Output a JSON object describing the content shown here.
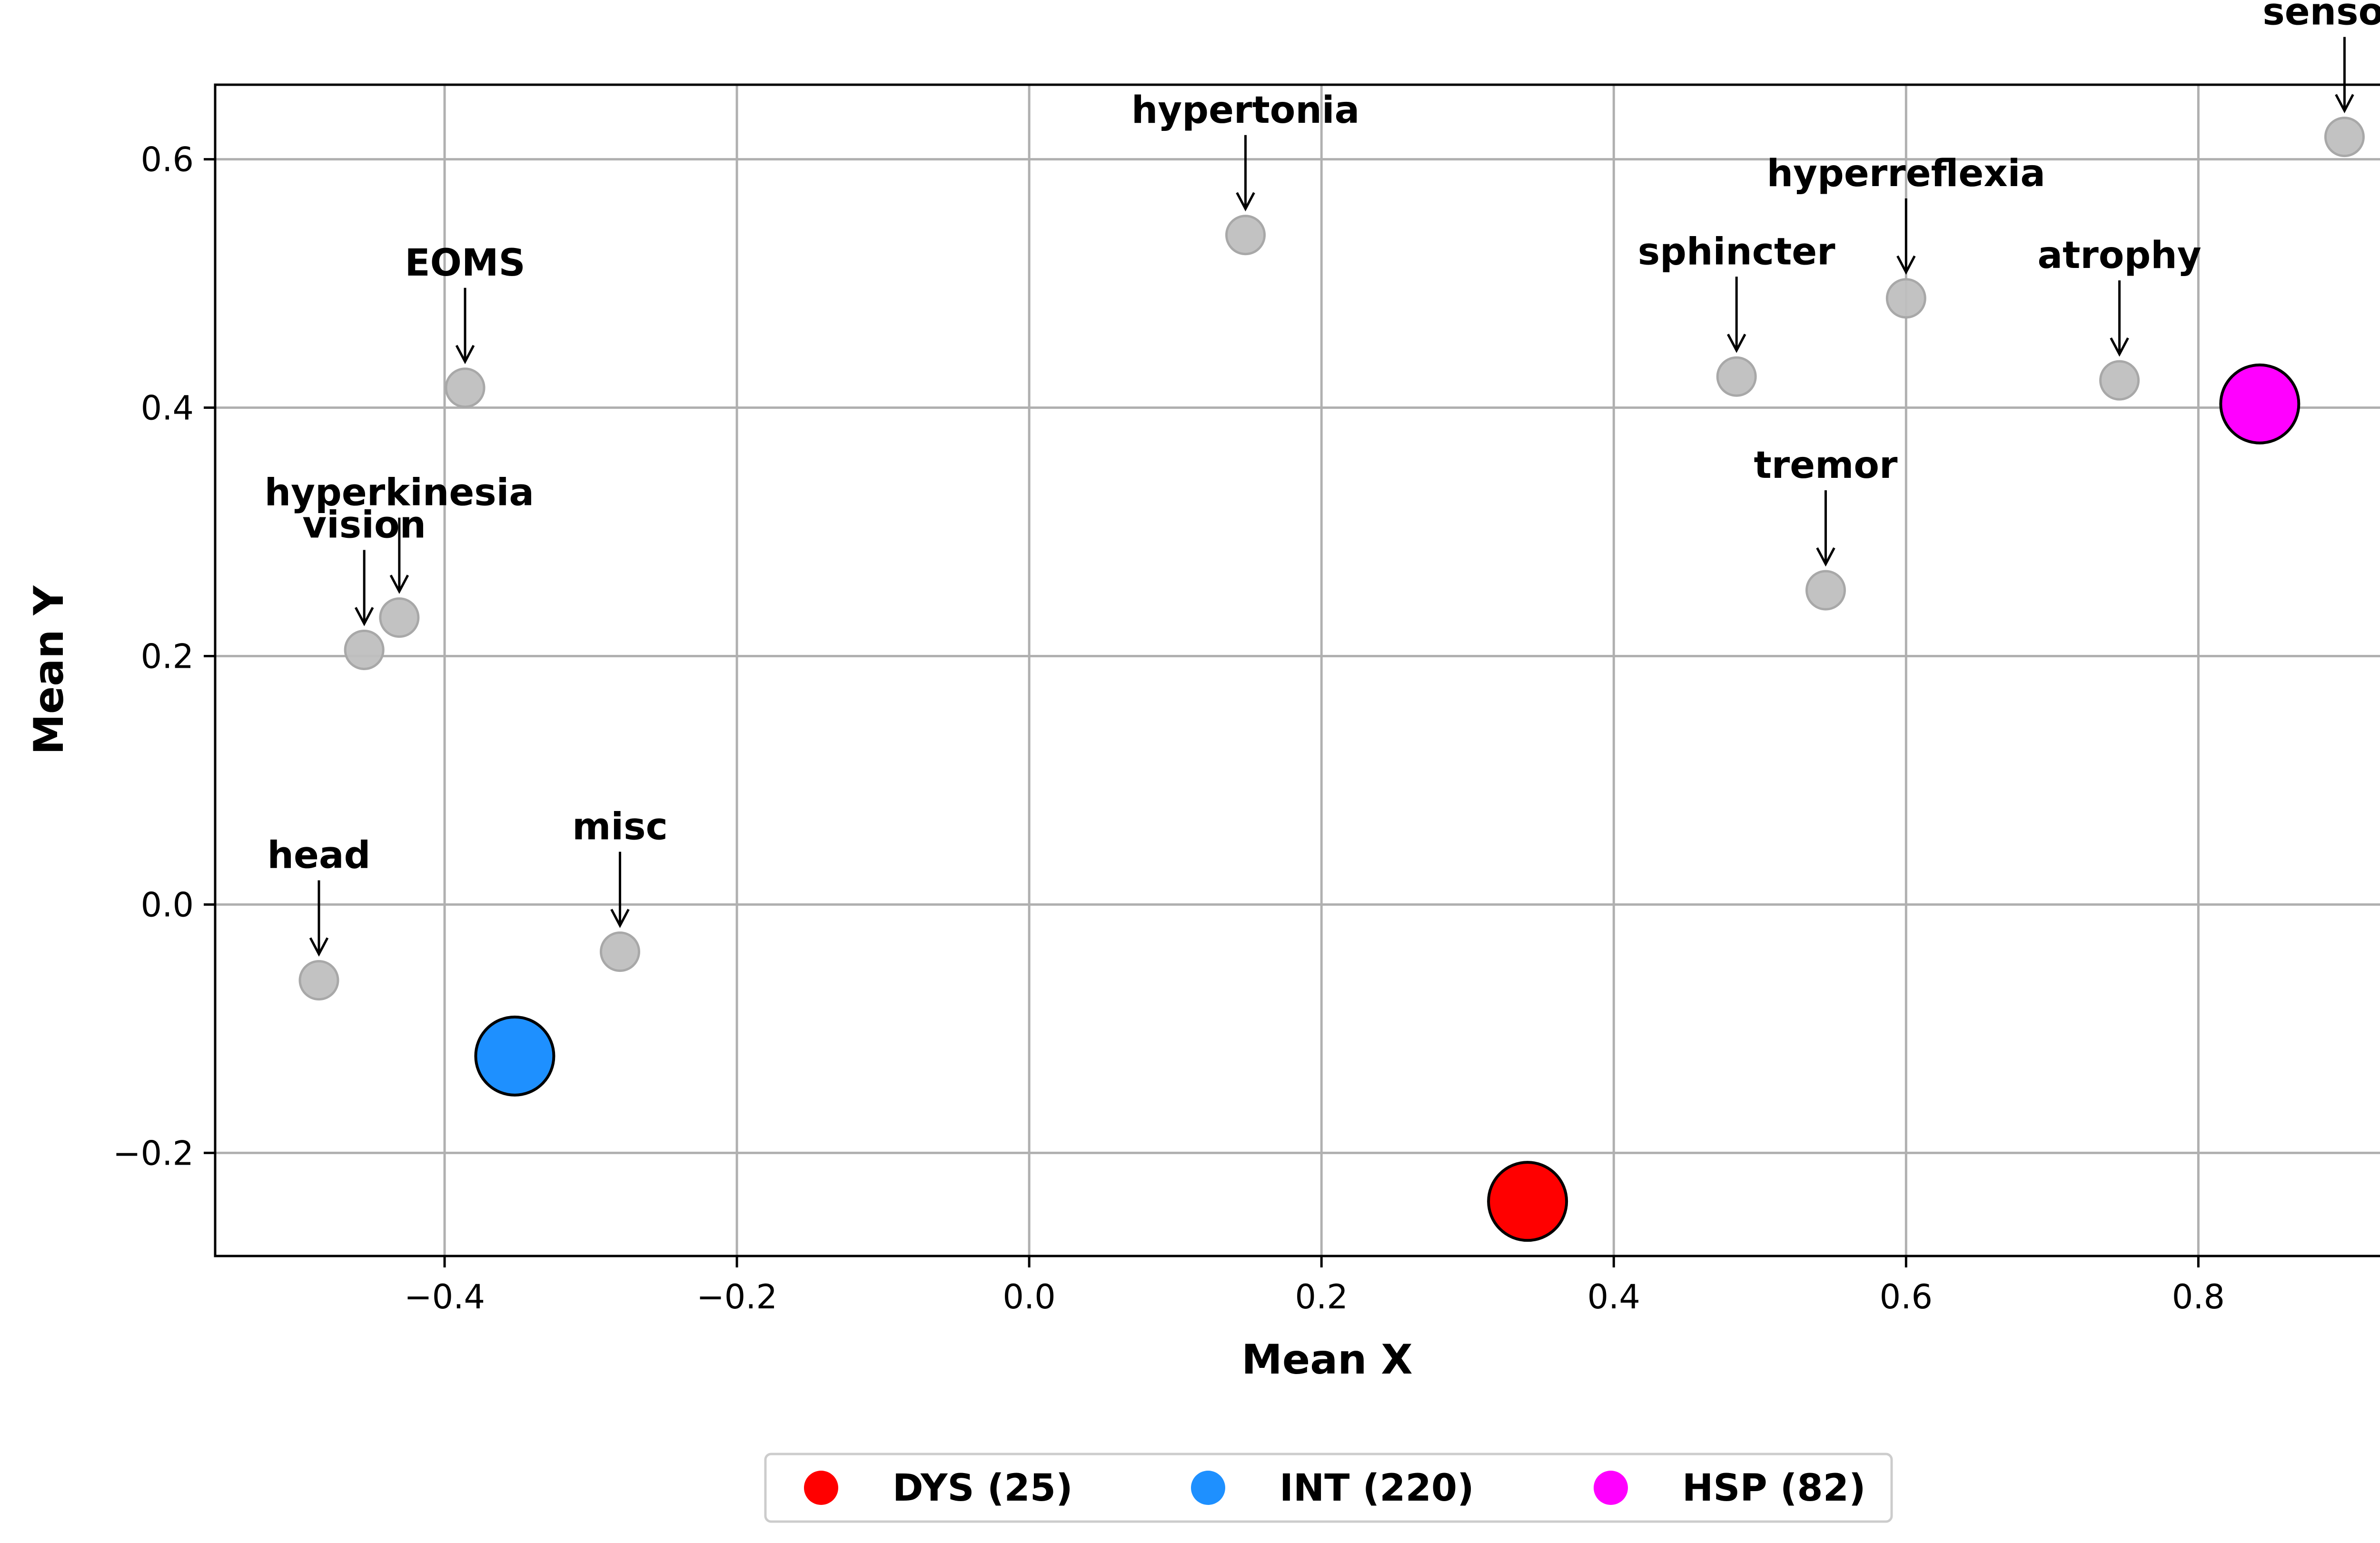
{
  "chart_data": {
    "type": "scatter",
    "xlabel": "Mean X",
    "ylabel": "Mean Y",
    "xlim": [
      -0.557,
      0.965
    ],
    "ylim": [
      -0.283,
      0.66
    ],
    "x_ticks": [
      -0.4,
      -0.2,
      0.0,
      0.2,
      0.4,
      0.6,
      0.8
    ],
    "x_tick_labels": [
      "−0.4",
      "−0.2",
      "0.0",
      "0.2",
      "0.4",
      "0.6",
      "0.8"
    ],
    "y_ticks": [
      -0.2,
      0.0,
      0.2,
      0.4,
      0.6
    ],
    "y_tick_labels": [
      "−0.2",
      "0.0",
      "0.2",
      "0.4",
      "0.6"
    ],
    "grid": true,
    "legend_position": "bottom-center, below plot",
    "features": [
      {
        "label": "sensory",
        "x": 0.9,
        "y": 0.618
      },
      {
        "label": "hypertonia",
        "x": 0.148,
        "y": 0.539
      },
      {
        "label": "hyperreflexia",
        "x": 0.6,
        "y": 0.488
      },
      {
        "label": "sphincter",
        "x": 0.484,
        "y": 0.425
      },
      {
        "label": "atrophy",
        "x": 0.746,
        "y": 0.422
      },
      {
        "label": "EOMS",
        "x": -0.386,
        "y": 0.416
      },
      {
        "label": "tremor",
        "x": 0.545,
        "y": 0.253
      },
      {
        "label": "hyperkinesia",
        "x": -0.431,
        "y": 0.231
      },
      {
        "label": "vision",
        "x": -0.455,
        "y": 0.205
      },
      {
        "label": "misc",
        "x": -0.28,
        "y": -0.038
      },
      {
        "label": "head",
        "x": -0.486,
        "y": -0.061
      }
    ],
    "feature_color": "#bfbfbf",
    "groups": [
      {
        "name": "DYS (25)",
        "x": 0.341,
        "y": -0.239,
        "color": "#ff0000"
      },
      {
        "name": "INT (220)",
        "x": -0.352,
        "y": -0.122,
        "color": "#1e90ff"
      },
      {
        "name": "HSP (82)",
        "x": 0.842,
        "y": 0.403,
        "color": "#ff00ff"
      }
    ]
  }
}
